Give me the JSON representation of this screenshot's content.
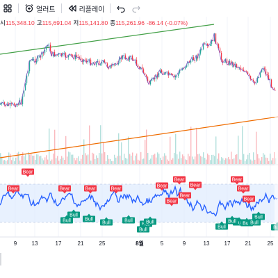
{
  "toolbar": {
    "layout_icon": "grid-layout-icon",
    "alert_icon": "alarm-clock-plus-icon",
    "alert_label": "얼러트",
    "replay_icon": "replay-rewind-icon",
    "replay_label": "리플레이",
    "undo_icon": "undo-arrow-icon",
    "redo_icon": "redo-arrow-icon"
  },
  "ohlc": {
    "open_key": "시",
    "open": "115,348.10",
    "high_key": "고",
    "high": "115,691.04",
    "low_key": "저",
    "low": "115,141.80",
    "close_key": "종",
    "close": "115,261.96",
    "change": "-86.14 (-0.07%)"
  },
  "colors": {
    "up": "#26a69a",
    "down": "#f23645",
    "price_line": "#7e57c2",
    "upper_trendline": "#43a047",
    "lower_trendline": "#ef6c00",
    "oscillator": "#2962ff",
    "band_fill": "#dbeafe",
    "bull_label": "#089981",
    "bear_label": "#f23645"
  },
  "time_axis": {
    "labels": [
      "9",
      "13",
      "17",
      "21",
      "25",
      "8월",
      "5",
      "9",
      "13",
      "17",
      "21",
      "25"
    ]
  },
  "oscillator_labels": {
    "bear": [
      "Bear",
      "Bear",
      "Bear",
      "Bear",
      "Bear",
      "Bear",
      "Bear",
      "Bear",
      "Bear",
      "Bear",
      "Bear",
      "Bear",
      "Bear"
    ],
    "bull": [
      "Bull",
      "Bull",
      "Bull",
      "Bull",
      "Bull",
      "Bull",
      "Bull",
      "Bull",
      "Bull",
      "Bull",
      "Bull",
      "Bull",
      "Bull",
      "Bull",
      "Bull"
    ]
  }
}
